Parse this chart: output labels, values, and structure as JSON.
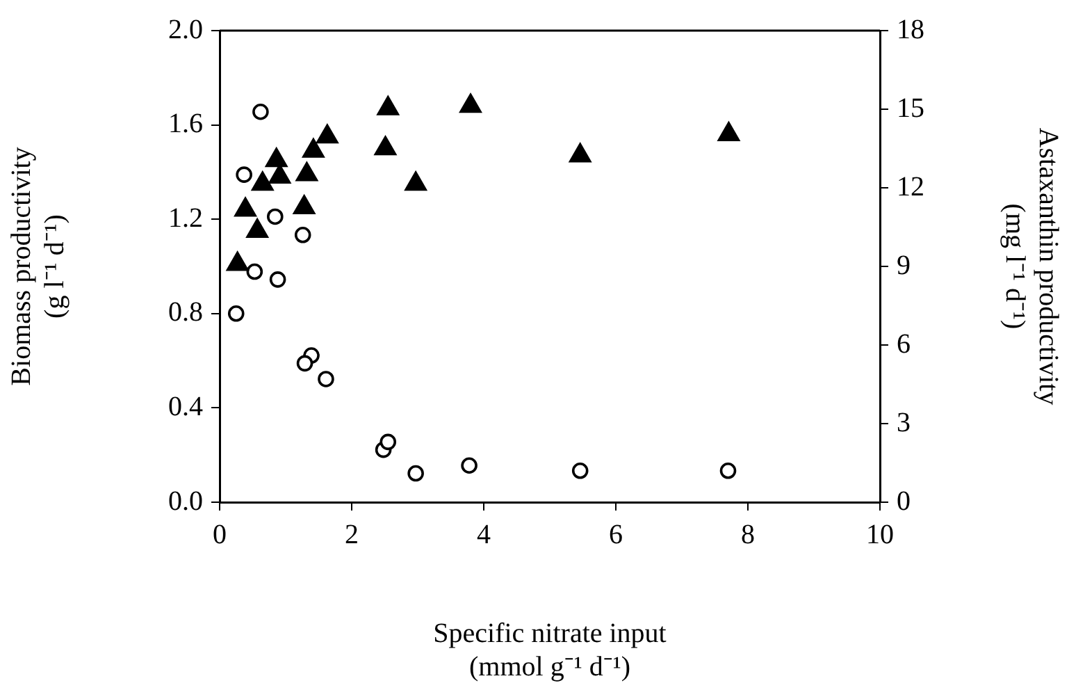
{
  "chart_data": {
    "type": "scatter",
    "xlabel": "Specific nitrate input\n(mmol g⁻¹ d⁻¹)",
    "ylabel": "Biomass productivity\n(g l⁻¹ d⁻¹)",
    "y2label": "Astaxanthin productivity\n(mg l⁻¹ d⁻¹)",
    "xlim": [
      0,
      10
    ],
    "xticks": [
      0,
      2,
      4,
      6,
      8,
      10
    ],
    "ylim": [
      0,
      2
    ],
    "yticks": [
      {
        "value": 0,
        "label": "0.0"
      },
      {
        "value": 0.4,
        "label": "0.4"
      },
      {
        "value": 0.8,
        "label": "0.8"
      },
      {
        "value": 1.2,
        "label": "1.2"
      },
      {
        "value": 1.6,
        "label": "1.6"
      },
      {
        "value": 2,
        "label": "2.0"
      }
    ],
    "y2lim": [
      0,
      18
    ],
    "y2ticks": [
      0,
      3,
      6,
      9,
      12,
      15,
      18
    ],
    "grid": false,
    "legend": false,
    "series": [
      {
        "color": "#000000",
        "marker": "triangle",
        "x": [
          0.27,
          0.39,
          0.57,
          0.65,
          0.86,
          0.91,
          1.28,
          1.32,
          1.42,
          1.63,
          2.55,
          2.51,
          2.97,
          3.8,
          5.46,
          7.71
        ],
        "values": [
          1.01,
          1.24,
          1.15,
          1.35,
          1.45,
          1.38,
          1.25,
          1.39,
          1.49,
          1.55,
          1.67,
          1.5,
          1.35,
          1.68,
          1.47,
          1.56
        ]
      },
      {
        "color": "#000000",
        "marker": "circle",
        "axis": "y2",
        "x": [
          0.62,
          0.37,
          0.84,
          1.26,
          0.53,
          0.88,
          0.25,
          1.39,
          1.29,
          1.61,
          2.48,
          2.55,
          2.97,
          3.78,
          5.46,
          7.7
        ],
        "values": [
          14.9,
          12.5,
          10.9,
          10.2,
          8.8,
          8.5,
          7.2,
          5.6,
          5.3,
          4.7,
          2.0,
          2.3,
          1.1,
          1.4,
          1.2,
          1.2
        ]
      }
    ]
  }
}
